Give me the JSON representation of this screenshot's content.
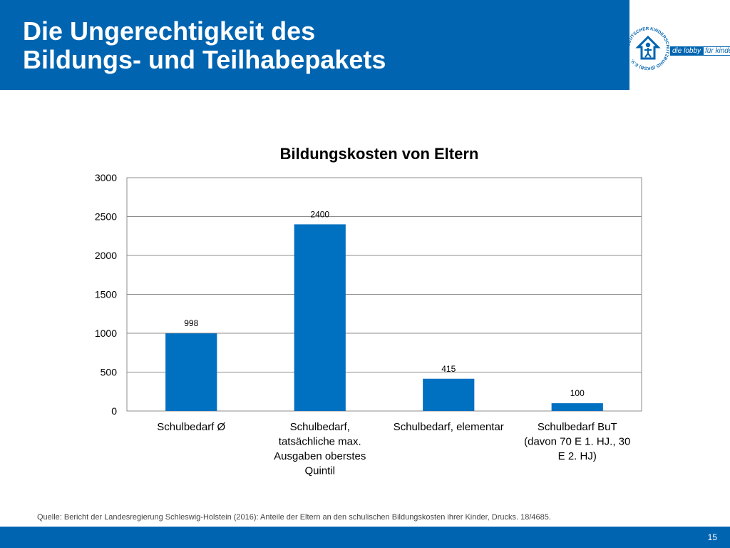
{
  "header": {
    "title_line1": "Die Ungerechtigkeit des",
    "title_line2": "Bildungs- und Teilhabepakets"
  },
  "logo": {
    "seal_text": "DEUTSCHER KINDERSCHUTZBUND (DKSB) E.V.",
    "lobby_left": "die lobby",
    "lobby_right": "für kinder"
  },
  "chart_data": {
    "type": "bar",
    "title": "Bildungskosten von Eltern",
    "categories": [
      [
        "Schulbedarf Ø"
      ],
      [
        "Schulbedarf,",
        "tatsächliche max.",
        "Ausgaben oberstes",
        "Quintil"
      ],
      [
        "Schulbedarf, elementar"
      ],
      [
        "Schulbedarf BuT",
        "(davon 70 E 1. HJ., 30",
        "E 2. HJ)"
      ]
    ],
    "values": [
      998,
      2400,
      415,
      100
    ],
    "data_labels": [
      "998",
      "2400",
      "415",
      "100"
    ],
    "ylim": [
      0,
      3000
    ],
    "yticks": [
      0,
      500,
      1000,
      1500,
      2000,
      2500,
      3000
    ],
    "grid": true,
    "legend": "none",
    "bar_color": "#0070c0"
  },
  "source_note": "Quelle: Bericht der Landesregierung Schleswig-Holstein (2016): Anteile der Eltern an den schulischen Bildungskosten ihrer Kinder, Drucks. 18/4685.",
  "footer": {
    "page_number": "15"
  }
}
